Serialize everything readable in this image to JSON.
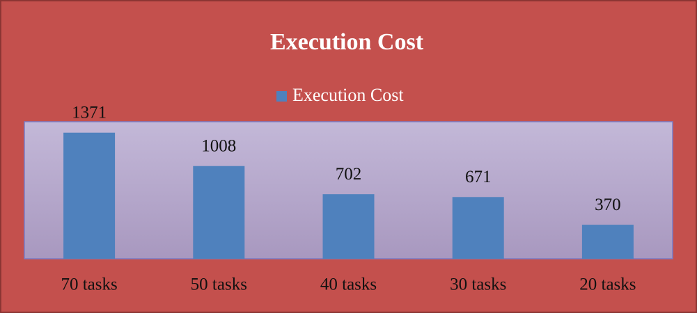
{
  "chart_data": {
    "type": "bar",
    "title": "Execution Cost",
    "categories": [
      "70 tasks",
      "50 tasks",
      "40 tasks",
      "30 tasks",
      "20 tasks"
    ],
    "series": [
      {
        "name": "Execution Cost",
        "color": "#4f81bd",
        "values": [
          1371,
          1008,
          702,
          671,
          370
        ]
      }
    ],
    "ylim": [
      0,
      1490
    ],
    "legend": "top"
  }
}
